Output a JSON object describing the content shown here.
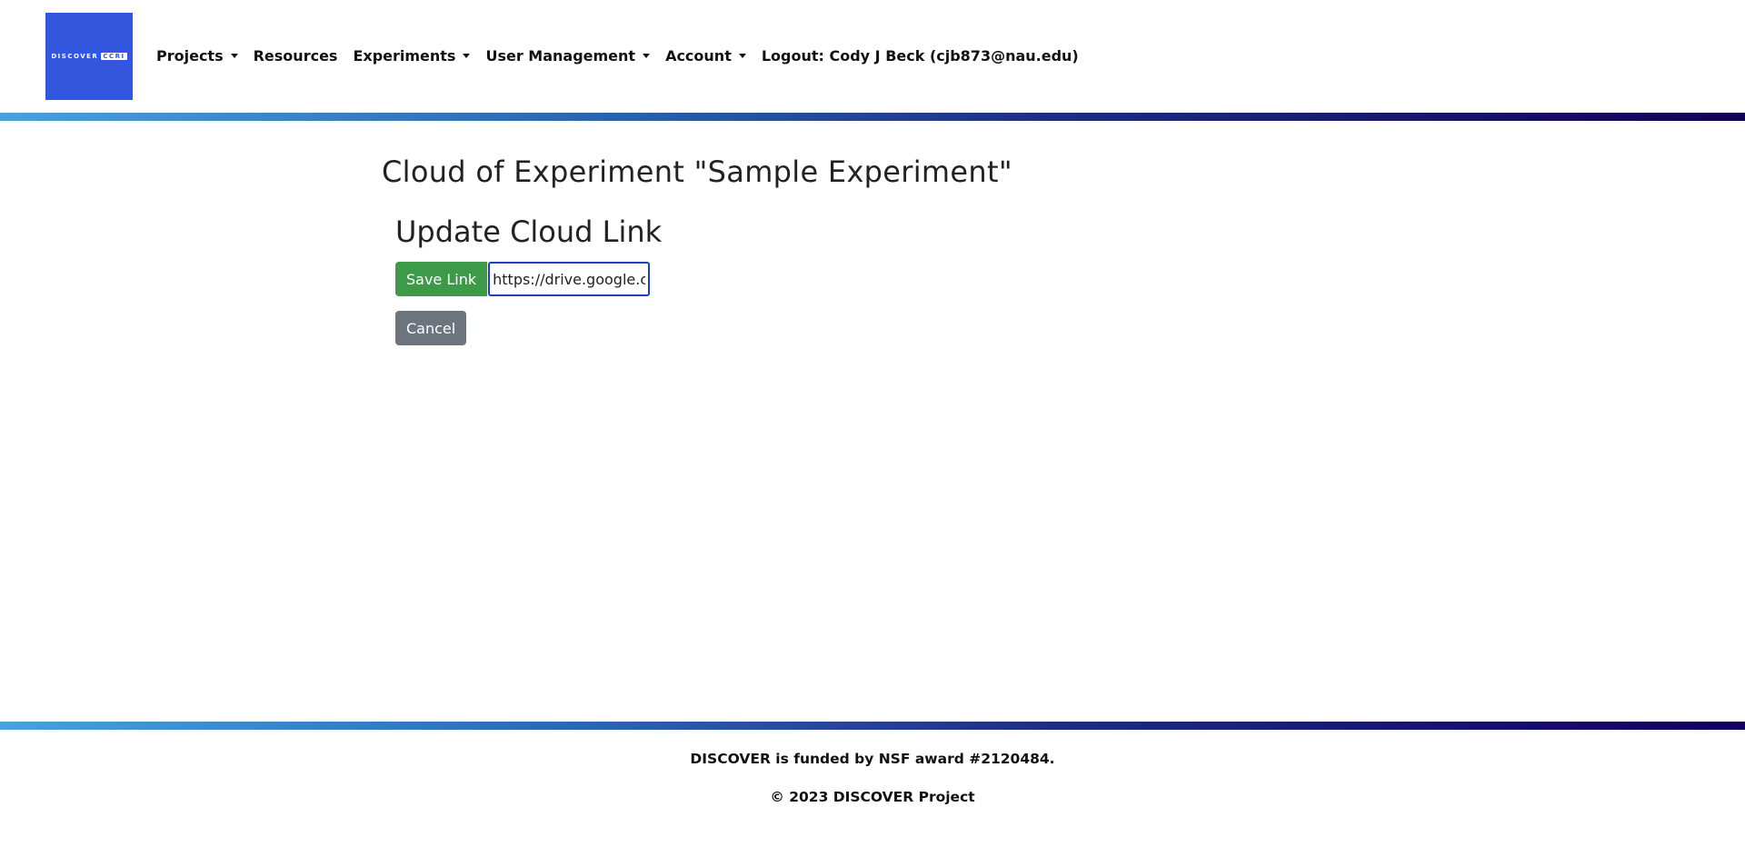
{
  "header": {
    "logo": {
      "text": "DISCOVER",
      "badge": "CCRI"
    },
    "nav": [
      {
        "label": "Projects",
        "dropdown": true
      },
      {
        "label": "Resources",
        "dropdown": false
      },
      {
        "label": "Experiments",
        "dropdown": true
      },
      {
        "label": "User Management",
        "dropdown": true
      },
      {
        "label": "Account",
        "dropdown": true
      },
      {
        "label": "Logout: Cody J Beck (cjb873@nau.edu)",
        "dropdown": false
      }
    ]
  },
  "main": {
    "title": "Cloud of Experiment \"Sample Experiment\"",
    "section_title": "Update Cloud Link",
    "save_label": "Save Link",
    "link_value": "https://drive.google.c",
    "cancel_label": "Cancel"
  },
  "footer": {
    "funding": "DISCOVER is funded by NSF award #2120484.",
    "copyright": "© 2023 DISCOVER Project"
  },
  "colors": {
    "logo_bg": "#3256de",
    "save_button": "#3d9a48",
    "cancel_button": "#6c757d",
    "input_border": "#1f3fbf",
    "gradient_start": "#4aa1d8",
    "gradient_end": "#140057"
  }
}
